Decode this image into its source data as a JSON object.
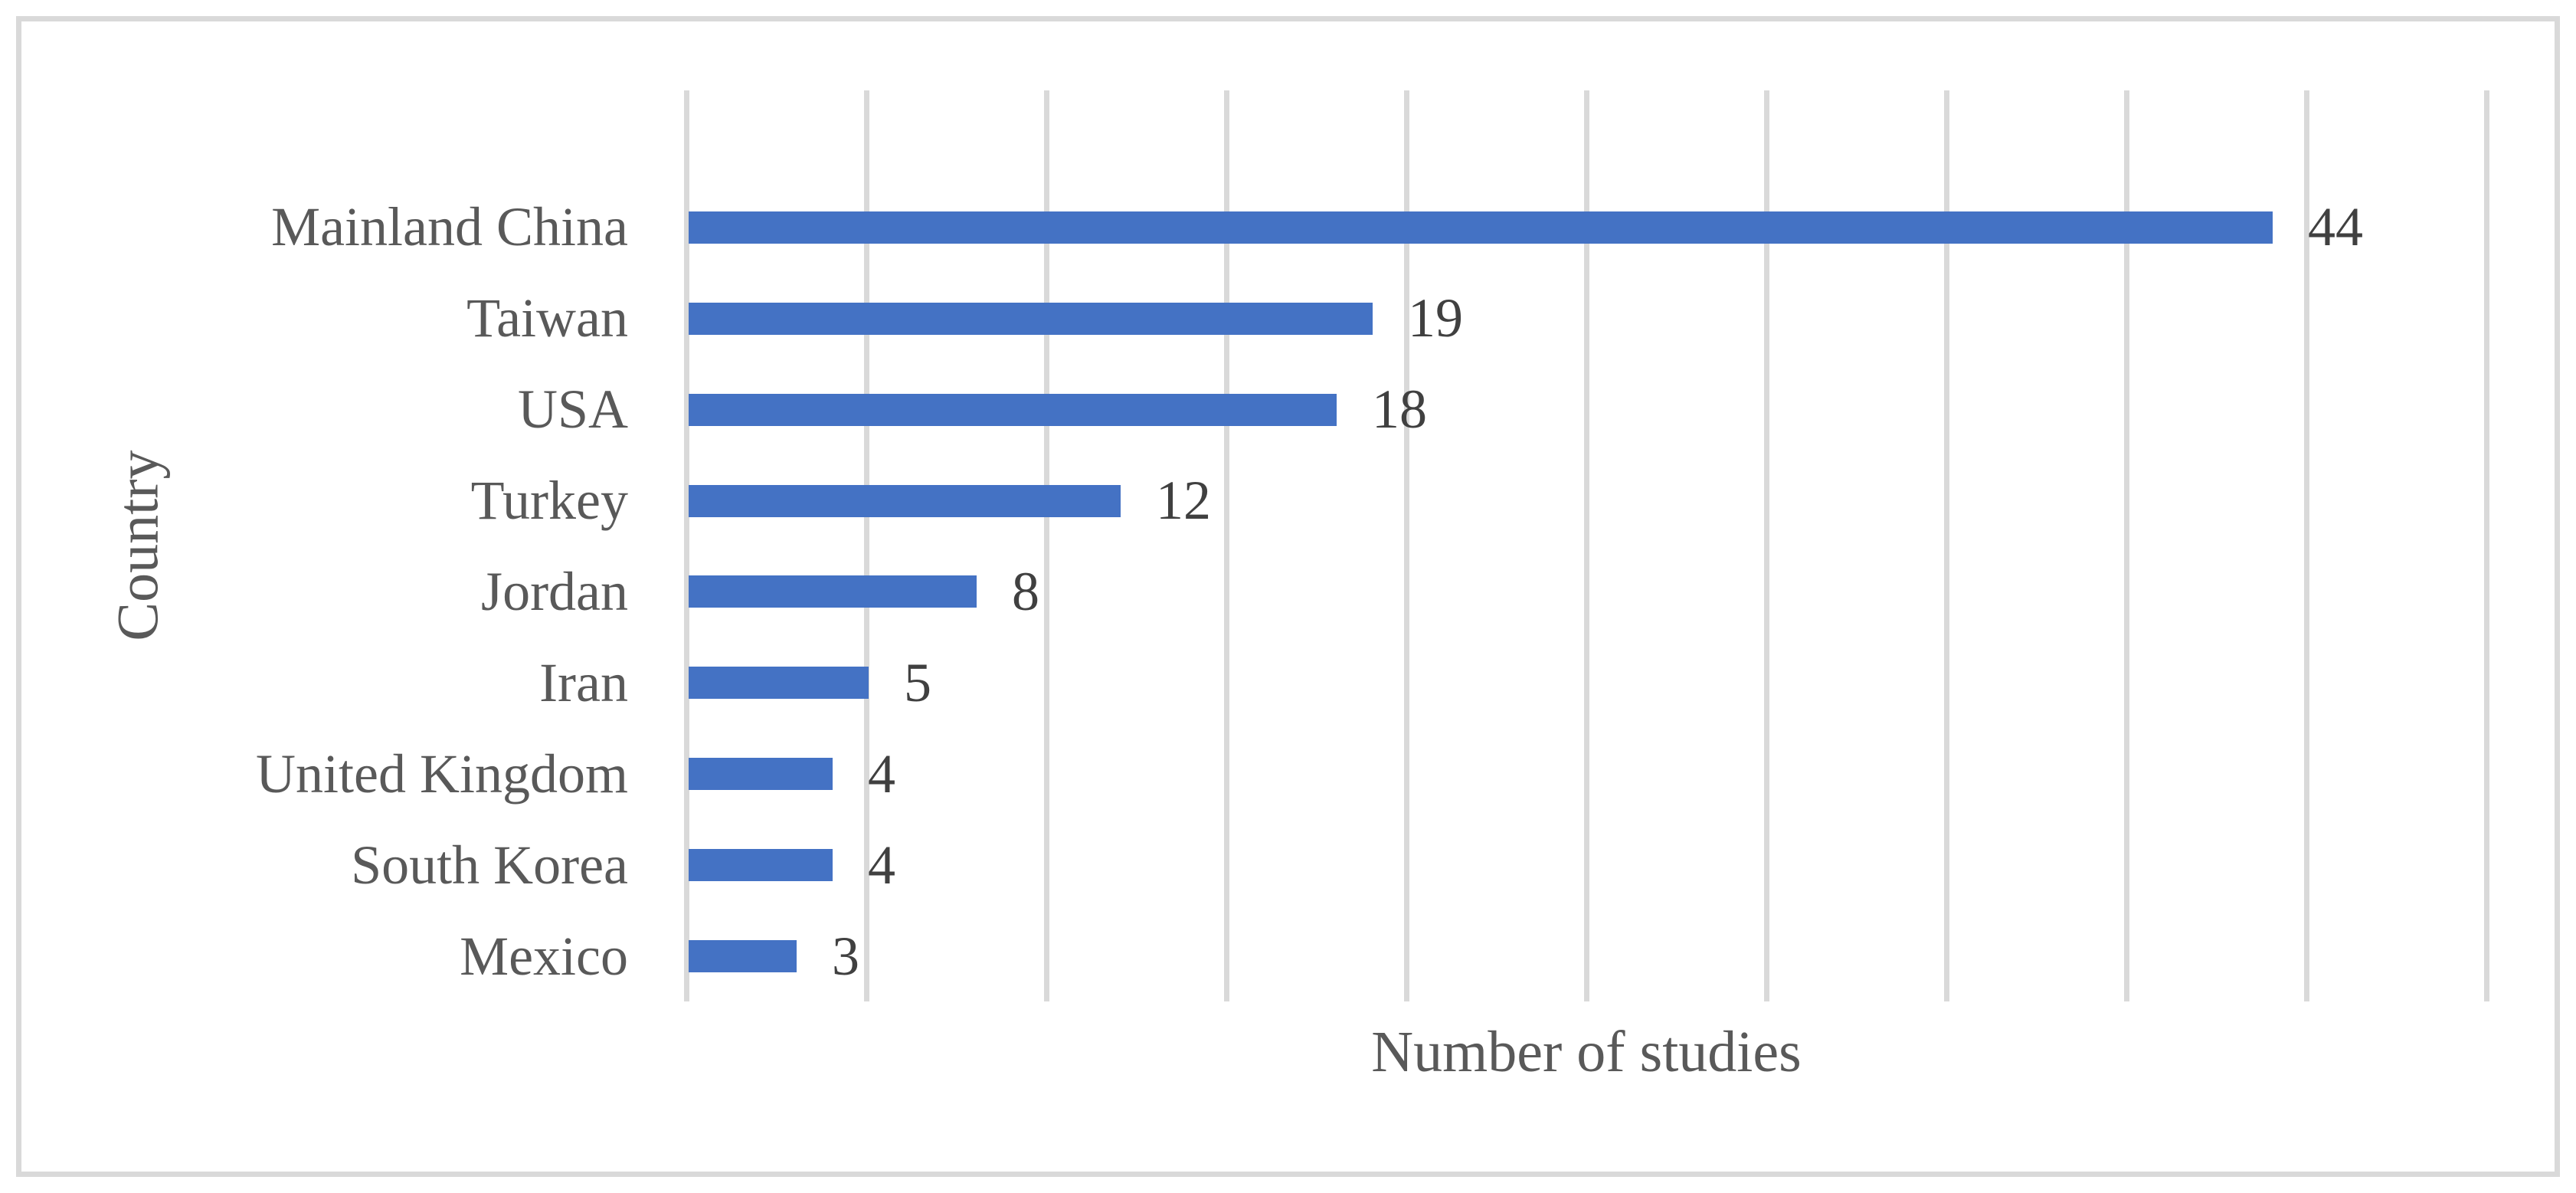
{
  "figure": {
    "background": "#ffffff",
    "border_color": "#d9d9d9"
  },
  "chart_data": {
    "type": "bar",
    "orientation": "horizontal",
    "title": "",
    "categories": [
      "Mainland China",
      "Taiwan",
      "USA",
      "Turkey",
      "Jordan",
      "Iran",
      "United Kingdom",
      "South Korea",
      "Mexico"
    ],
    "values": [
      44,
      19,
      18,
      12,
      8,
      5,
      4,
      4,
      3
    ],
    "data_labels": [
      "44",
      "19",
      "18",
      "12",
      "8",
      "5",
      "4",
      "4",
      "3"
    ],
    "xlabel": "Number of studies",
    "ylabel": "Country",
    "xlim": [
      0,
      50
    ],
    "grid_interval": 5,
    "grid": true,
    "legend": false,
    "empty_top_category_slot": true,
    "colors": {
      "bar": "#4472c4",
      "gridline": "#d9d9d9",
      "axis_title_text": "#595959",
      "category_text": "#595959",
      "data_label_text": "#404040"
    }
  }
}
